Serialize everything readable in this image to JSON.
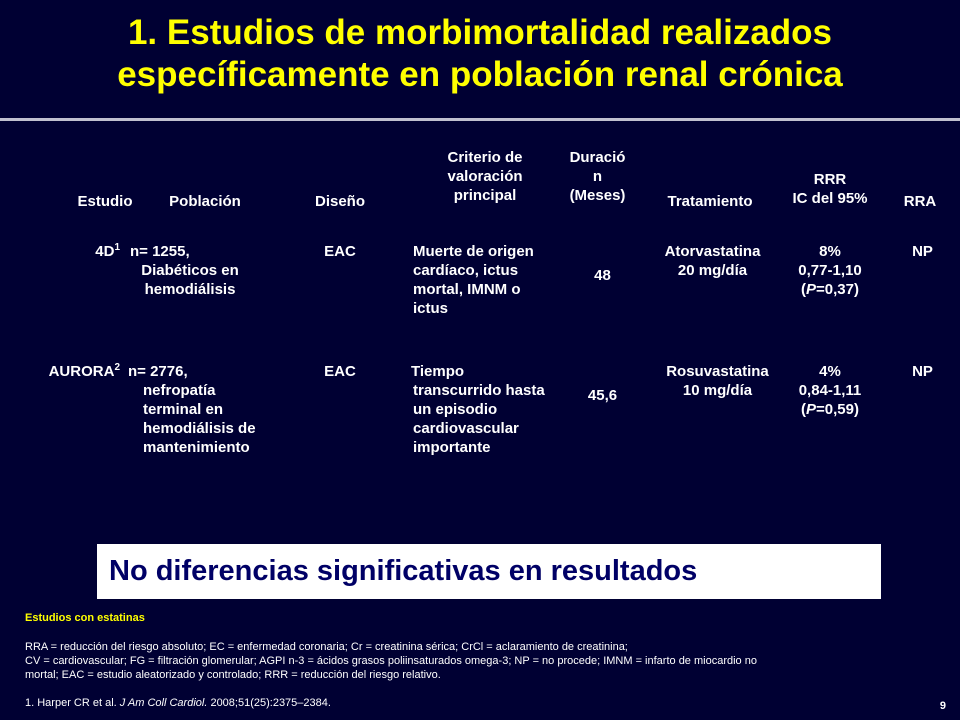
{
  "title": {
    "line1": "1. Estudios de morbimortalidad realizados",
    "line2": "específicamente en población renal crónica"
  },
  "table": {
    "headers": {
      "estudio": "Estudio",
      "poblacion": "Población",
      "diseno": "Diseño",
      "criterio": "Criterio de\nvaloración\nprincipal",
      "duracion": "Duració\nn\n(Meses)",
      "tratamiento": "Tratamiento",
      "rrr": "RRR\nIC del 95%",
      "rra": "RRA"
    },
    "rows": [
      {
        "estudio": "4D",
        "estudio_sup": "1",
        "poblacion_first": "n= 1255,",
        "poblacion_rest": "Diabéticos en\nhemodiálisis",
        "diseno": "EAC",
        "criterio_first": "Muerte de origen",
        "criterio_rest": "cardíaco, ictus\nmortal, IMNM o\nictus",
        "duracion": "48",
        "tratamiento": "Atorvastatina\n20 mg/día",
        "rrr_line1": "8%",
        "rrr_line2": "0,77-1,10",
        "rrr_p_open": "(",
        "rrr_p_italic": "P",
        "rrr_p_rest": "=0,37)",
        "rra": "NP"
      },
      {
        "estudio": "AURORA",
        "estudio_sup": "2",
        "poblacion_first": "n= 2776,",
        "poblacion_rest": "nefropatía\nterminal en\nhemodiálisis de\nmantenimiento",
        "diseno": "EAC",
        "criterio_first": "Tiempo",
        "criterio_rest": "transcurrido hasta\nun episodio\ncardiovascular\nimportante",
        "duracion": "45,6",
        "tratamiento": "Rosuvastatina\n10 mg/día",
        "rrr_line1": "4%",
        "rrr_line2": "0,84-1,11",
        "rrr_p_open": "(",
        "rrr_p_italic": "P",
        "rrr_p_rest": "=0,59)",
        "rra": "NP"
      }
    ]
  },
  "banner": "No diferencias significativas en resultados",
  "footer": {
    "tag": "Estudios con estatinas",
    "legend_line1": "RRA = reducción del riesgo absoluto; EC = enfermedad coronaria; Cr = creatinina sérica; CrCl = aclaramiento de creatinina;",
    "legend_line2": "CV = cardiovascular; FG = filtración glomerular; AGPI n-3 = ácidos grasos poliinsaturados omega-3; NP = no procede; IMNM = infarto de miocardio no",
    "legend_line3": "mortal; EAC = estudio aleatorizado y controlado; RRR = reducción del riesgo relativo.",
    "ref_prefix": "1. Harper CR et al. ",
    "ref_journal": "J Am Coll Cardiol.",
    "ref_suffix": " 2008;51(25):2375–2384.",
    "page_number": "9"
  },
  "colors": {
    "background": "#000033",
    "title": "#ffff00",
    "banner_bg": "#ffffff",
    "banner_text": "#000066"
  }
}
